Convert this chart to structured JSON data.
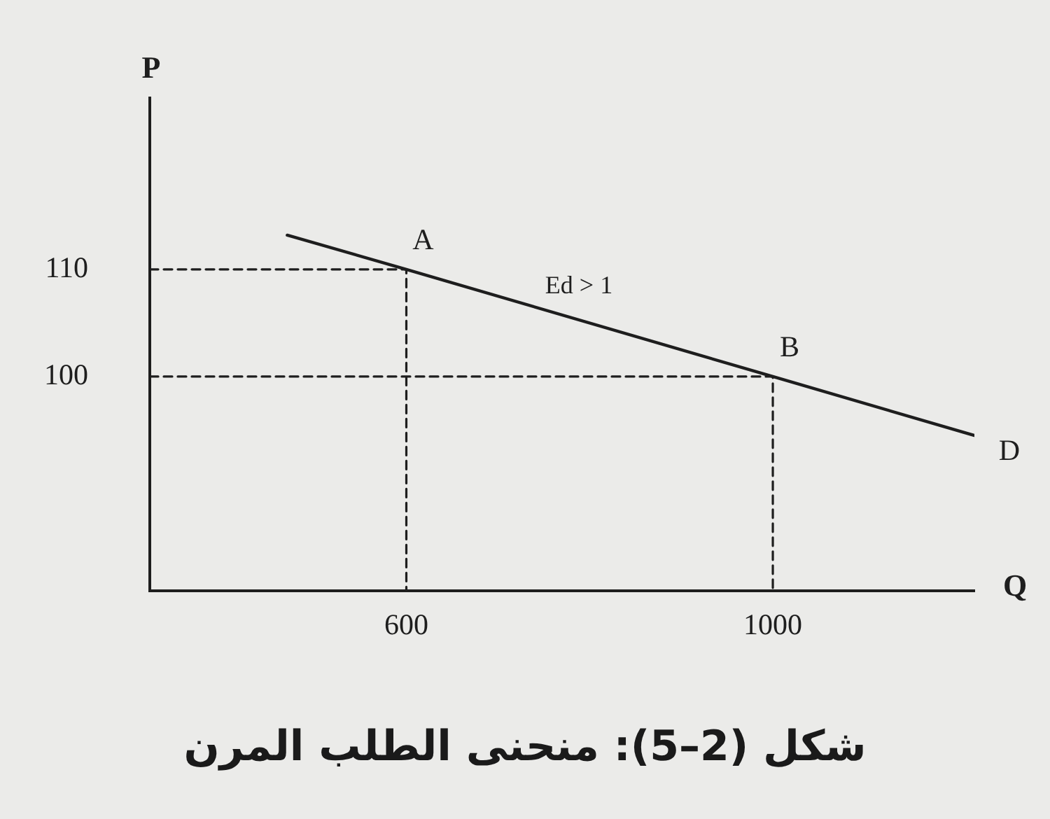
{
  "chart_data": {
    "type": "line",
    "title": "شكل (2–5): منحنى الطلب المرن",
    "xlabel": "Q",
    "ylabel": "P",
    "xlim": [
      320,
      1220
    ],
    "ylim": [
      80,
      126
    ],
    "xticks": [
      600,
      1000
    ],
    "yticks": [
      100,
      110
    ],
    "marker": "none",
    "series": [
      {
        "color": "#1e1e1e",
        "line_style": "solid",
        "x": [
          470,
          600,
          1000,
          1220
        ],
        "values": [
          113.2,
          110,
          100,
          94.5
        ]
      },
      {
        "color": "#1e1e1e",
        "line_style": "dashed",
        "x": [
          320,
          600,
          600
        ],
        "values": [
          110,
          110,
          80
        ]
      },
      {
        "color": "#1e1e1e",
        "line_style": "dashed",
        "x": [
          320,
          1000,
          1000
        ],
        "values": [
          100,
          100,
          80
        ]
      }
    ],
    "annotations": [
      {
        "text": "A",
        "x": 600,
        "y": 110
      },
      {
        "text": "Ed > 1",
        "x": 770,
        "y": 105.8
      },
      {
        "text": "B",
        "x": 1000,
        "y": 100
      },
      {
        "text": "D",
        "x": 1220,
        "y": 94.5
      }
    ]
  }
}
